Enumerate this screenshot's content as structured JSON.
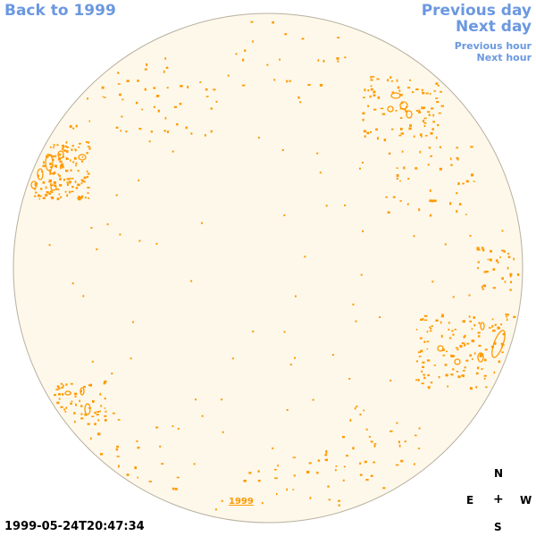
{
  "nav": {
    "back_label": "Back to 1999",
    "previous_day": "Previous day",
    "next_day": "Next day",
    "previous_hour": "Previous hour",
    "next_hour": "Next hour"
  },
  "timestamp": "1999-05-24T20:47:34",
  "year_link": "1999",
  "compass": {
    "north": "N",
    "east": "E",
    "center": "+",
    "west": "W",
    "south": "S"
  },
  "colors": {
    "link": "#6b98e0",
    "disk_fill": "#fdf8ea",
    "disk_edge": "#b8b0a0",
    "contour": "#ff9900"
  }
}
